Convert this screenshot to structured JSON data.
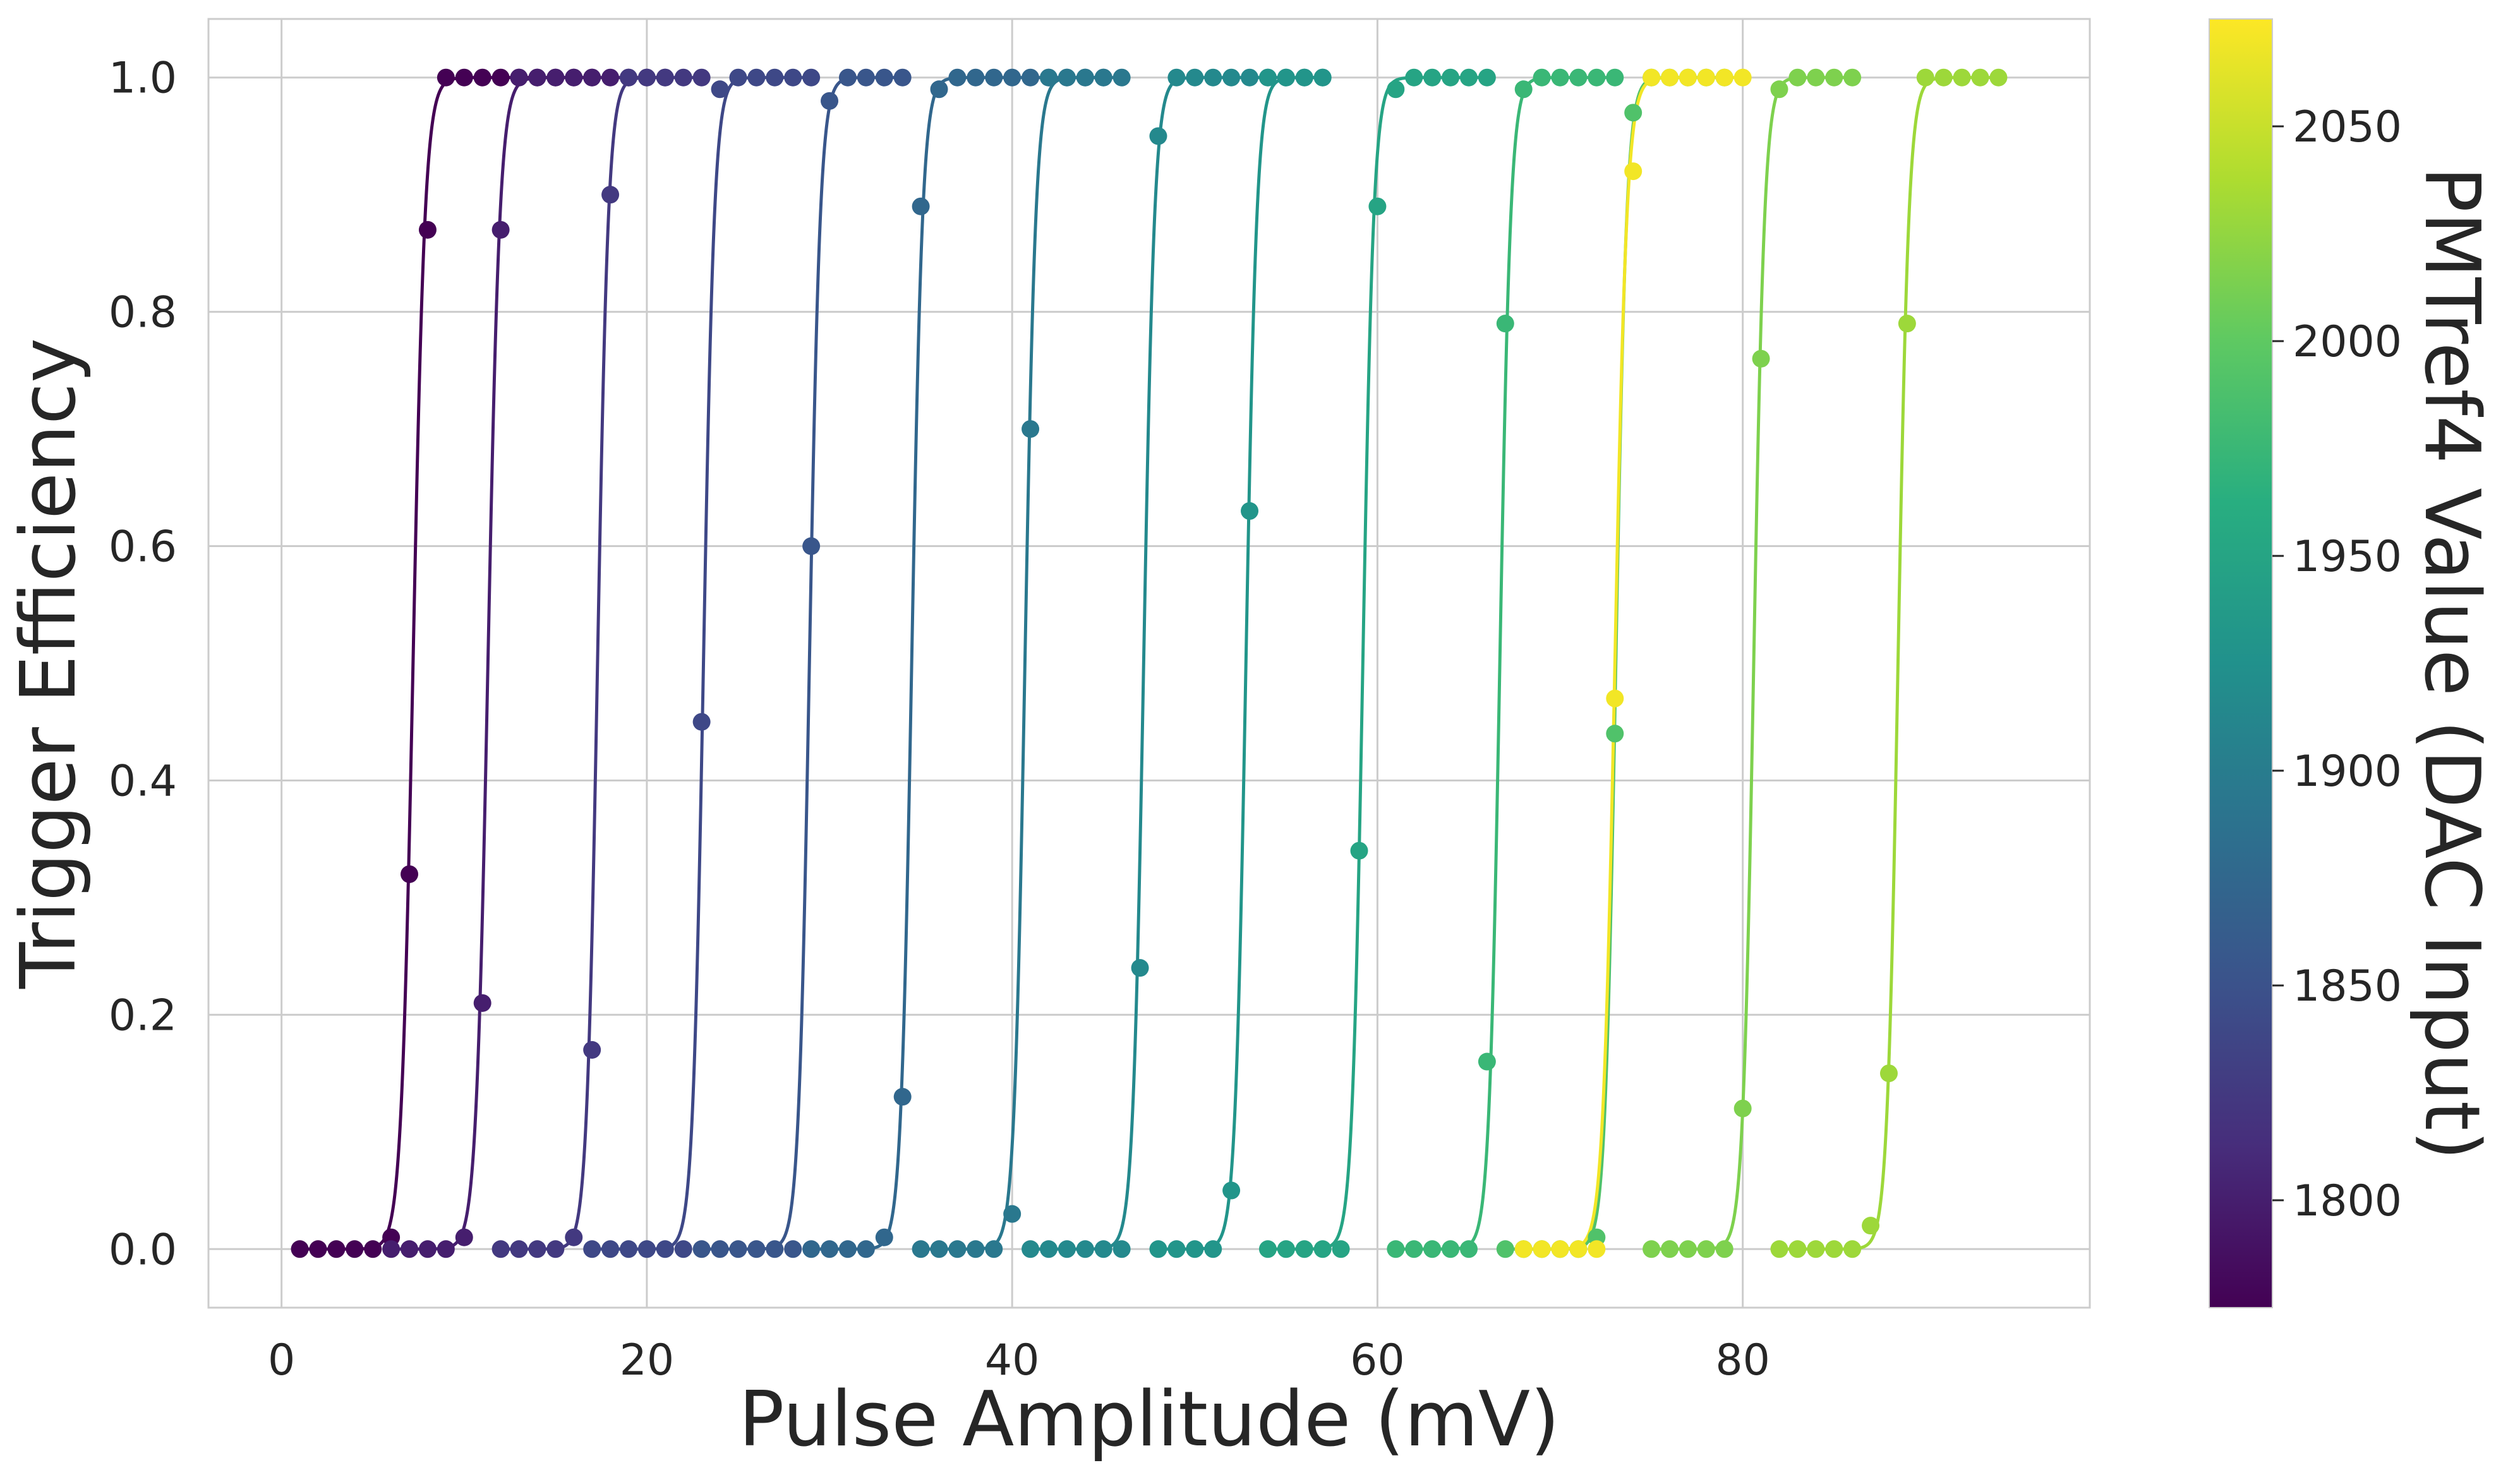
{
  "chart_data": {
    "type": "line",
    "title": "",
    "xlabel": "Pulse Amplitude (mV)",
    "ylabel": "Trigger Efficiency",
    "xlim": [
      -4,
      99
    ],
    "ylim": [
      -0.05,
      1.05
    ],
    "xticks": [
      0,
      20,
      40,
      60,
      80
    ],
    "xtick_labels": [
      "0",
      "20",
      "40",
      "60",
      "80"
    ],
    "yticks": [
      0.0,
      0.2,
      0.4,
      0.6,
      0.8,
      1.0
    ],
    "ytick_labels": [
      "0.0",
      "0.2",
      "0.4",
      "0.6",
      "0.8",
      "1.0"
    ],
    "grid": true,
    "colorbar": {
      "label": "PMTref4 Value (DAC Input)",
      "range": [
        1775,
        2075
      ],
      "ticks": [
        1800,
        1850,
        1900,
        1950,
        2000,
        2050
      ],
      "tick_labels": [
        "1800",
        "1850",
        "1900",
        "1950",
        "2000",
        "2050"
      ],
      "colormap": "viridis"
    },
    "series": [
      {
        "name": "1775",
        "dac": 1775,
        "fit_center": 7.2,
        "fit_width": 0.33,
        "x": [
          1,
          2,
          3,
          4,
          5,
          6,
          7,
          8,
          9,
          10,
          11,
          12,
          13,
          14,
          15,
          16,
          17
        ],
        "y": [
          0,
          0,
          0,
          0,
          0,
          0.01,
          0.32,
          0.87,
          1,
          1,
          1,
          1,
          1,
          1,
          1,
          1,
          1
        ]
      },
      {
        "name": "1800",
        "dac": 1800,
        "fit_center": 11.3,
        "fit_width": 0.33,
        "x": [
          6,
          7,
          8,
          9,
          10,
          11,
          12,
          13,
          14,
          15,
          16,
          17,
          18,
          19,
          20,
          21
        ],
        "y": [
          0,
          0,
          0,
          0,
          0.01,
          0.21,
          0.87,
          1,
          1,
          1,
          1,
          1,
          1,
          1,
          1,
          1
        ]
      },
      {
        "name": "1825",
        "dac": 1825,
        "fit_center": 17.3,
        "fit_width": 0.3,
        "x": [
          12,
          13,
          14,
          15,
          16,
          17,
          18,
          19,
          20,
          21,
          22,
          23
        ],
        "y": [
          0,
          0,
          0,
          0,
          0.01,
          0.17,
          0.9,
          1,
          1,
          1,
          1,
          1
        ]
      },
      {
        "name": "1840",
        "dac": 1840,
        "fit_center": 23.1,
        "fit_width": 0.3,
        "x": [
          17,
          18,
          19,
          20,
          21,
          22,
          23,
          24,
          25,
          26,
          27,
          28,
          29
        ],
        "y": [
          0,
          0,
          0,
          0,
          0,
          0,
          0.45,
          0.99,
          1,
          1,
          1,
          1,
          1
        ]
      },
      {
        "name": "1855",
        "dac": 1855,
        "fit_center": 28.9,
        "fit_width": 0.3,
        "x": [
          23,
          24,
          25,
          26,
          27,
          28,
          29,
          30,
          31,
          32,
          33,
          34
        ],
        "y": [
          0,
          0,
          0,
          0,
          0,
          0,
          0.6,
          0.98,
          1,
          1,
          1,
          1
        ]
      },
      {
        "name": "1875",
        "dac": 1875,
        "fit_center": 34.5,
        "fit_width": 0.3,
        "x": [
          29,
          30,
          31,
          32,
          33,
          34,
          35,
          36,
          37,
          38,
          39,
          40,
          41,
          42,
          43,
          44,
          45
        ],
        "y": [
          0,
          0,
          0,
          0,
          0.01,
          0.13,
          0.89,
          0.99,
          1,
          1,
          1,
          1,
          1,
          1,
          1,
          1,
          1
        ]
      },
      {
        "name": "1895",
        "dac": 1895,
        "fit_center": 40.7,
        "fit_width": 0.3,
        "x": [
          35,
          36,
          37,
          38,
          39,
          40,
          41,
          42,
          43,
          44,
          45,
          46
        ],
        "y": [
          0,
          0,
          0,
          0,
          0,
          0.03,
          0.7,
          1,
          1,
          1,
          1,
          1
        ]
      },
      {
        "name": "1915",
        "dac": 1915,
        "fit_center": 47.2,
        "fit_width": 0.3,
        "x": [
          41,
          42,
          43,
          44,
          45,
          46,
          47,
          48,
          49,
          50,
          51,
          52,
          53,
          54,
          55,
          56,
          57
        ],
        "y": [
          0,
          0,
          0,
          0,
          0,
          0,
          0.24,
          0.95,
          1,
          1,
          1,
          1,
          1,
          1,
          1,
          1,
          1
        ]
      },
      {
        "name": "1930",
        "dac": 1930,
        "fit_center": 52.8,
        "fit_width": 0.3,
        "x": [
          48,
          49,
          50,
          51,
          52,
          53,
          54,
          55,
          56,
          57
        ],
        "y": [
          0,
          0,
          0,
          0,
          0.05,
          0.63,
          1,
          1,
          1,
          1
        ]
      },
      {
        "name": "1950",
        "dac": 1950,
        "fit_center": 59.2,
        "fit_width": 0.3,
        "x": [
          54,
          55,
          56,
          57,
          58,
          59,
          60,
          61,
          62,
          63,
          64,
          65,
          66
        ],
        "y": [
          0,
          0,
          0,
          0,
          0,
          0.34,
          0.89,
          0.99,
          1,
          1,
          1,
          1,
          1
        ]
      },
      {
        "name": "1975",
        "dac": 1975,
        "fit_center": 66.7,
        "fit_width": 0.3,
        "x": [
          61,
          62,
          63,
          64,
          65,
          66,
          67,
          68,
          69,
          70,
          71,
          72,
          73
        ],
        "y": [
          0,
          0,
          0,
          0,
          0,
          0.16,
          0.79,
          0.99,
          1,
          1,
          1,
          1,
          1
        ]
      },
      {
        "name": "1990",
        "dac": 1990,
        "fit_center": 73.05,
        "fit_width": 0.3,
        "x": [
          67,
          68,
          69,
          70,
          71,
          72,
          73,
          74,
          75,
          76,
          77,
          78,
          79
        ],
        "y": [
          0,
          0,
          0,
          0,
          0,
          0.01,
          0.44,
          0.97,
          1,
          1,
          1,
          1,
          1
        ]
      },
      {
        "name": "2015",
        "dac": 2015,
        "fit_center": 80.6,
        "fit_width": 0.3,
        "x": [
          75,
          76,
          77,
          78,
          79,
          80,
          81,
          82,
          83,
          84,
          85,
          86
        ],
        "y": [
          0,
          0,
          0,
          0,
          0,
          0.12,
          0.76,
          0.99,
          1,
          1,
          1,
          1
        ]
      },
      {
        "name": "2030",
        "dac": 2030,
        "fit_center": 88.5,
        "fit_width": 0.3,
        "x": [
          82,
          83,
          84,
          85,
          86,
          87,
          88,
          89,
          90,
          91,
          92,
          93,
          94
        ],
        "y": [
          0,
          0,
          0,
          0,
          0,
          0.02,
          0.15,
          0.79,
          1,
          1,
          1,
          1,
          1
        ]
      },
      {
        "name": "2070",
        "dac": 2070,
        "fit_center": 73.0,
        "fit_width": 0.33,
        "x": [
          68,
          69,
          70,
          71,
          72,
          73,
          74,
          75,
          76,
          77,
          78,
          79,
          80
        ],
        "y": [
          0,
          0,
          0,
          0,
          0,
          0.47,
          0.92,
          1,
          1,
          1,
          1,
          1,
          1
        ]
      }
    ]
  }
}
